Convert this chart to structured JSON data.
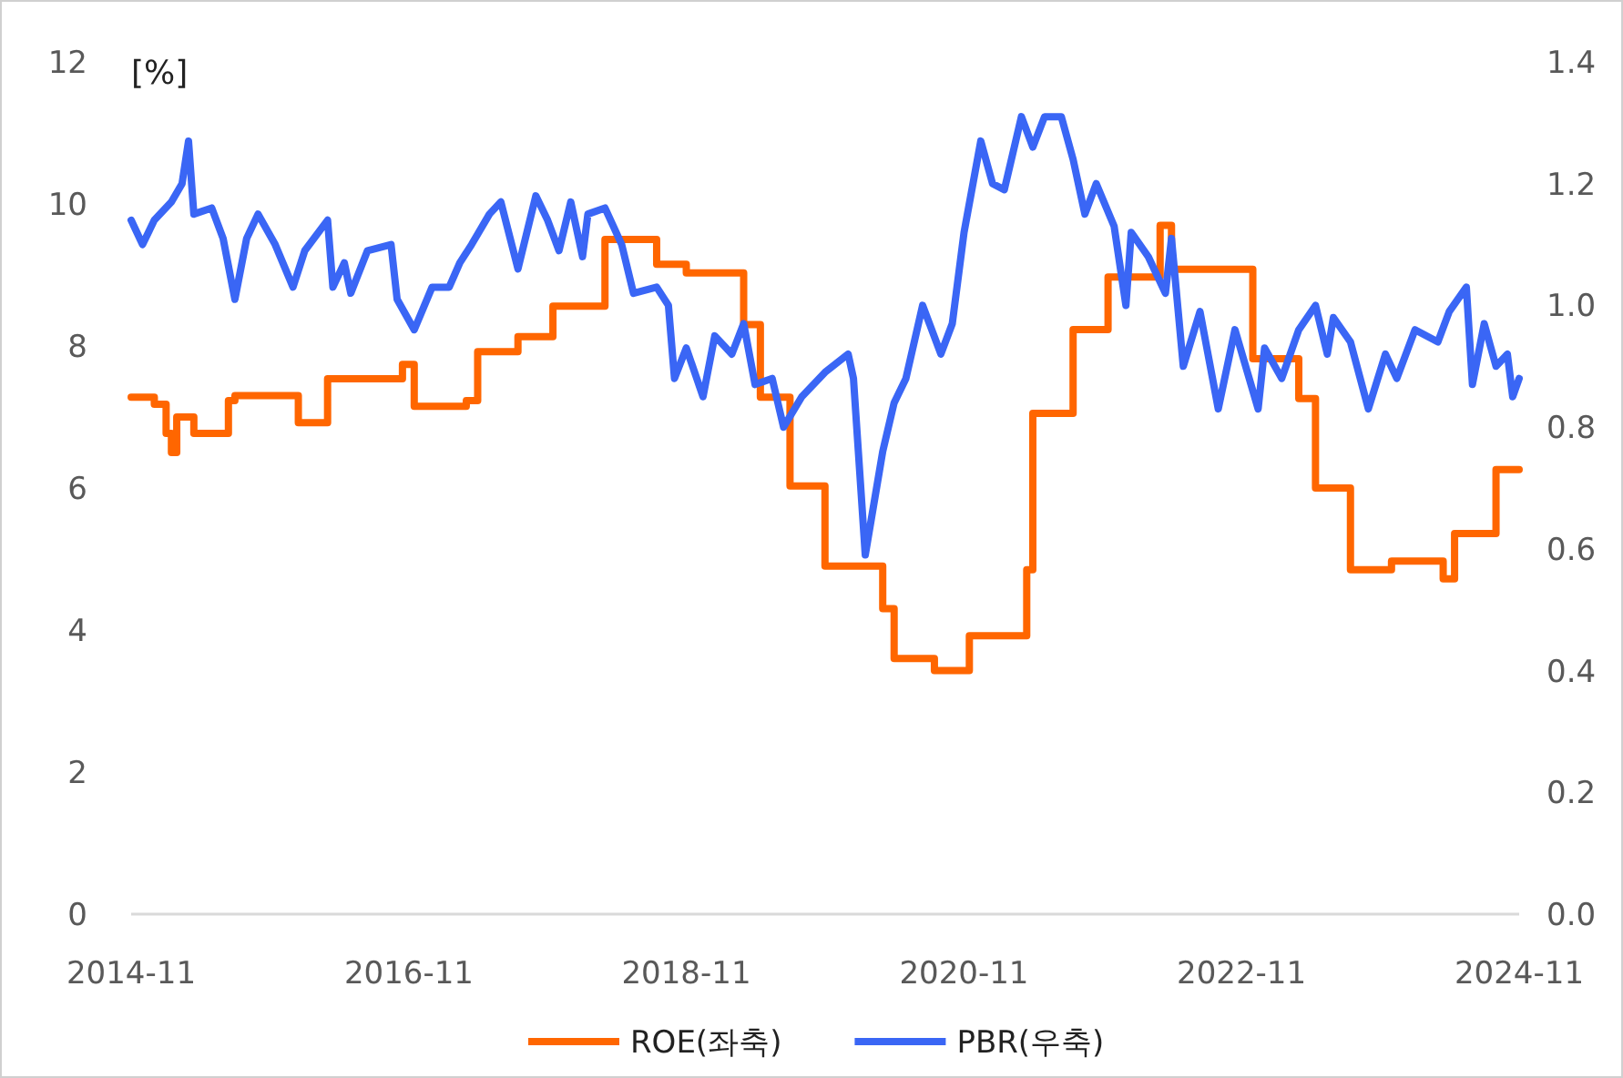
{
  "chart_data": {
    "type": "line",
    "ylabel": "[%]",
    "xlim": [
      "2014-11-01",
      "2024-11-01"
    ],
    "xticks": [
      "2014-11",
      "2016-11",
      "2018-11",
      "2020-11",
      "2022-11",
      "2024-11"
    ],
    "ylim": [
      0,
      12
    ],
    "yticks": [
      0,
      2,
      4,
      6,
      8,
      10,
      12
    ],
    "y2lim": [
      0,
      1.4
    ],
    "y2ticks": [
      {
        "value": 0,
        "label": "0.0"
      },
      {
        "value": 0.2,
        "label": "0.2"
      },
      {
        "value": 0.4,
        "label": "0.4"
      },
      {
        "value": 0.6,
        "label": "0.6"
      },
      {
        "value": 0.8,
        "label": "0.8"
      },
      {
        "value": 1.0,
        "label": "1.0"
      },
      {
        "value": 1.2,
        "label": "1.2"
      },
      {
        "value": 1.4,
        "label": "1.4"
      }
    ],
    "legend": "bottom",
    "line_style": "solid",
    "series": [
      {
        "name": "ROE(좌축)",
        "type": "step",
        "color": "#ff6600",
        "x": [
          "2014-11-01",
          "2015-01-01",
          "2015-02-01",
          "2015-02-15",
          "2015-03-01",
          "2015-04-15",
          "2015-07-15",
          "2015-08-01",
          "2016-01-15",
          "2016-04-01",
          "2016-10-15",
          "2016-11-15",
          "2017-04-01",
          "2017-05-01",
          "2017-08-15",
          "2017-11-15",
          "2018-04-01",
          "2018-08-15",
          "2018-11-01",
          "2019-04-01",
          "2019-05-15",
          "2019-08-01",
          "2019-11-01",
          "2020-04-01",
          "2020-05-01",
          "2020-08-15",
          "2020-11-15",
          "2021-04-15",
          "2021-05-01",
          "2021-08-15",
          "2021-11-15",
          "2022-04-01",
          "2022-05-01",
          "2022-12-01",
          "2023-04-01",
          "2023-05-15",
          "2023-08-15",
          "2023-12-01",
          "2024-04-15",
          "2024-05-15",
          "2024-09-01",
          "2024-11-01"
        ],
        "values": [
          7.28,
          7.18,
          6.77,
          6.5,
          7.0,
          6.77,
          7.23,
          7.3,
          6.92,
          7.54,
          7.74,
          7.15,
          7.23,
          7.92,
          8.13,
          8.56,
          9.5,
          9.15,
          9.03,
          8.3,
          7.28,
          6.03,
          4.9,
          4.3,
          3.6,
          3.43,
          3.92,
          4.85,
          7.05,
          8.23,
          8.97,
          9.7,
          9.08,
          7.82,
          7.26,
          6.0,
          4.85,
          4.97,
          4.72,
          5.36,
          6.26,
          6.26
        ]
      },
      {
        "name": "PBR(우축)",
        "axis": "y2",
        "color": "#3a66f5",
        "x": [
          "2014-11-01",
          "2014-12-01",
          "2015-01-01",
          "2015-02-15",
          "2015-03-15",
          "2015-04-01",
          "2015-04-15",
          "2015-06-01",
          "2015-07-01",
          "2015-08-01",
          "2015-09-01",
          "2015-10-01",
          "2015-11-15",
          "2016-01-01",
          "2016-02-01",
          "2016-04-01",
          "2016-04-15",
          "2016-05-15",
          "2016-06-01",
          "2016-07-15",
          "2016-09-15",
          "2016-10-01",
          "2016-11-15",
          "2017-01-01",
          "2017-02-15",
          "2017-03-15",
          "2017-04-15",
          "2017-06-01",
          "2017-07-01",
          "2017-08-15",
          "2017-10-01",
          "2017-11-01",
          "2017-12-01",
          "2018-01-01",
          "2018-02-01",
          "2018-02-15",
          "2018-04-01",
          "2018-05-15",
          "2018-06-15",
          "2018-08-15",
          "2018-09-15",
          "2018-10-01",
          "2018-11-01",
          "2018-12-15",
          "2019-01-15",
          "2019-03-01",
          "2019-04-01",
          "2019-05-01",
          "2019-06-15",
          "2019-07-15",
          "2019-09-01",
          "2019-11-01",
          "2020-01-01",
          "2020-01-15",
          "2020-02-15",
          "2020-04-01",
          "2020-05-01",
          "2020-06-01",
          "2020-07-15",
          "2020-09-01",
          "2020-10-01",
          "2020-11-01",
          "2020-12-15",
          "2021-01-15",
          "2021-02-15",
          "2021-04-01",
          "2021-05-01",
          "2021-06-01",
          "2021-07-15",
          "2021-08-15",
          "2021-09-15",
          "2021-10-15",
          "2021-12-01",
          "2022-01-01",
          "2022-01-15",
          "2022-03-01",
          "2022-04-15",
          "2022-05-01",
          "2022-06-01",
          "2022-07-15",
          "2022-09-01",
          "2022-10-15",
          "2022-12-15",
          "2023-01-01",
          "2023-02-15",
          "2023-04-01",
          "2023-05-15",
          "2023-06-15",
          "2023-07-01",
          "2023-08-15",
          "2023-10-01",
          "2023-11-15",
          "2023-12-15",
          "2024-02-01",
          "2024-04-01",
          "2024-05-01",
          "2024-06-15",
          "2024-07-01",
          "2024-08-01",
          "2024-09-01",
          "2024-10-01",
          "2024-10-15",
          "2024-11-01"
        ],
        "values": [
          1.14,
          1.1,
          1.14,
          1.17,
          1.2,
          1.27,
          1.15,
          1.16,
          1.11,
          1.01,
          1.11,
          1.15,
          1.1,
          1.03,
          1.09,
          1.14,
          1.03,
          1.07,
          1.02,
          1.09,
          1.1,
          1.01,
          0.96,
          1.03,
          1.03,
          1.07,
          1.1,
          1.15,
          1.17,
          1.06,
          1.18,
          1.14,
          1.09,
          1.17,
          1.08,
          1.15,
          1.16,
          1.1,
          1.02,
          1.03,
          1.0,
          0.88,
          0.93,
          0.85,
          0.95,
          0.92,
          0.97,
          0.87,
          0.88,
          0.8,
          0.85,
          0.89,
          0.92,
          0.88,
          0.59,
          0.76,
          0.84,
          0.88,
          1.0,
          0.92,
          0.97,
          1.12,
          1.27,
          1.2,
          1.19,
          1.31,
          1.26,
          1.31,
          1.31,
          1.24,
          1.15,
          1.2,
          1.13,
          1.0,
          1.12,
          1.08,
          1.02,
          1.11,
          0.9,
          0.99,
          0.83,
          0.96,
          0.83,
          0.93,
          0.88,
          0.96,
          1.0,
          0.92,
          0.98,
          0.94,
          0.83,
          0.92,
          0.88,
          0.96,
          0.94,
          0.99,
          1.03,
          0.87,
          0.97,
          0.9,
          0.92,
          0.85,
          0.88
        ]
      }
    ]
  }
}
